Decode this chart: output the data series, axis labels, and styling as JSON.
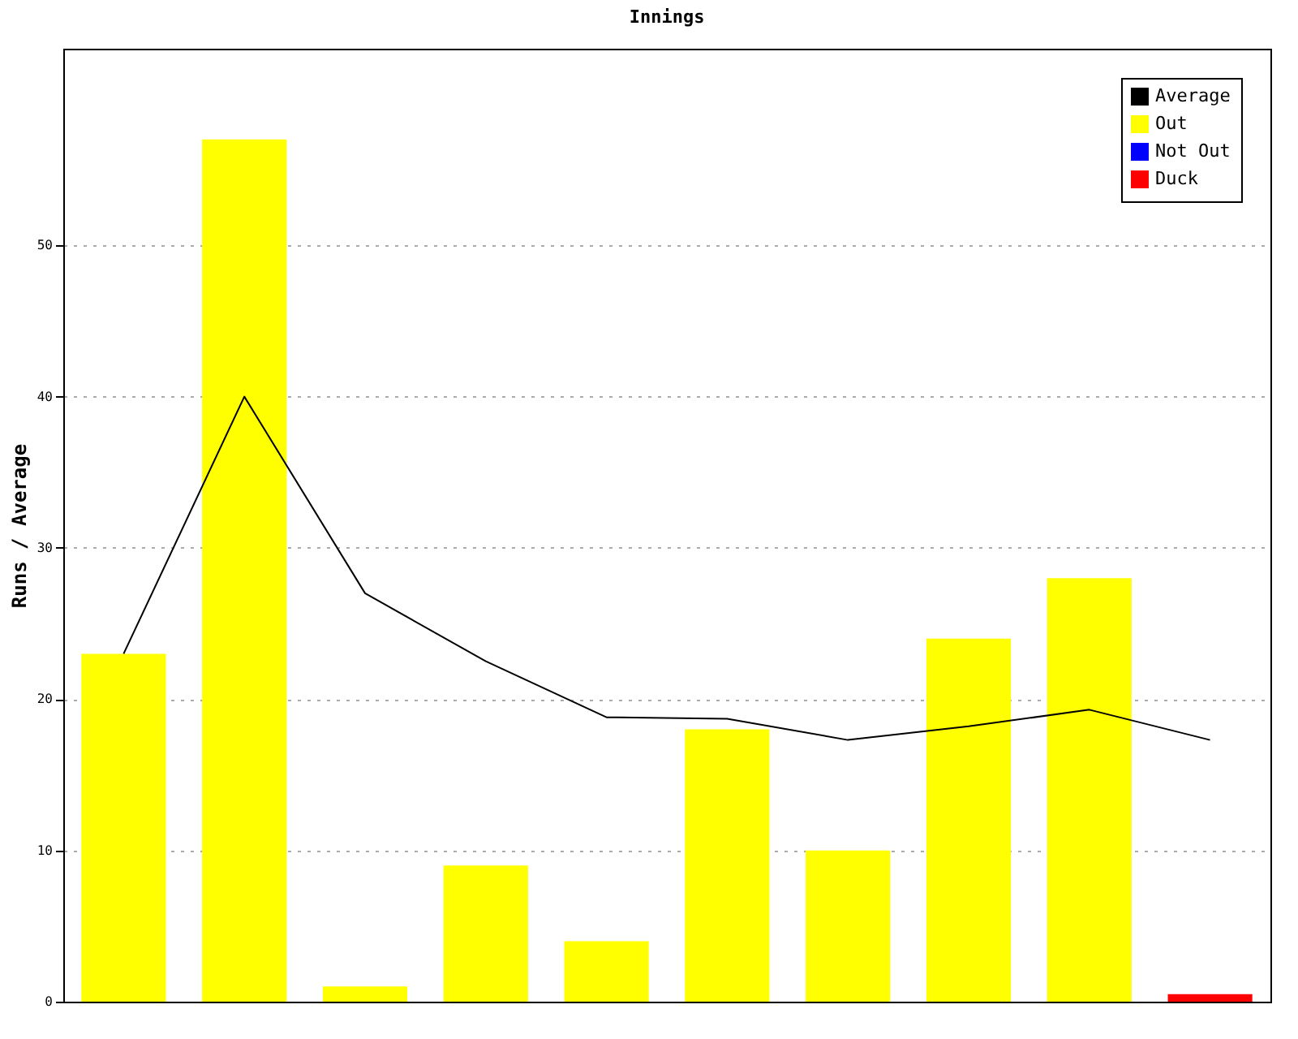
{
  "chart_data": {
    "type": "bar",
    "title": "Innings",
    "ylabel": "Runs / Average",
    "categories": [
      null,
      null,
      null,
      null,
      null,
      null,
      null,
      null,
      null,
      null
    ],
    "series": [
      {
        "name": "Average",
        "type": "line",
        "color": "#000000",
        "values": [
          23,
          40,
          27,
          22.5,
          18.8,
          18.7,
          17.3,
          18.2,
          19.3,
          17.3
        ]
      },
      {
        "name": "Out",
        "color": "#ffff00",
        "values": [
          23,
          57,
          1,
          9,
          4,
          18,
          10,
          24,
          28,
          null
        ]
      },
      {
        "name": "Not Out",
        "color": "#0000ff",
        "values": [
          null,
          null,
          null,
          null,
          null,
          null,
          null,
          null,
          null,
          null
        ]
      },
      {
        "name": "Duck",
        "color": "#ff0000",
        "values": [
          null,
          null,
          null,
          null,
          null,
          null,
          null,
          null,
          null,
          0.5
        ]
      }
    ],
    "ylim": [
      0,
      63
    ],
    "yticks": [
      0,
      10,
      20,
      30,
      40,
      50
    ],
    "grid": "y",
    "legend": "top right"
  }
}
